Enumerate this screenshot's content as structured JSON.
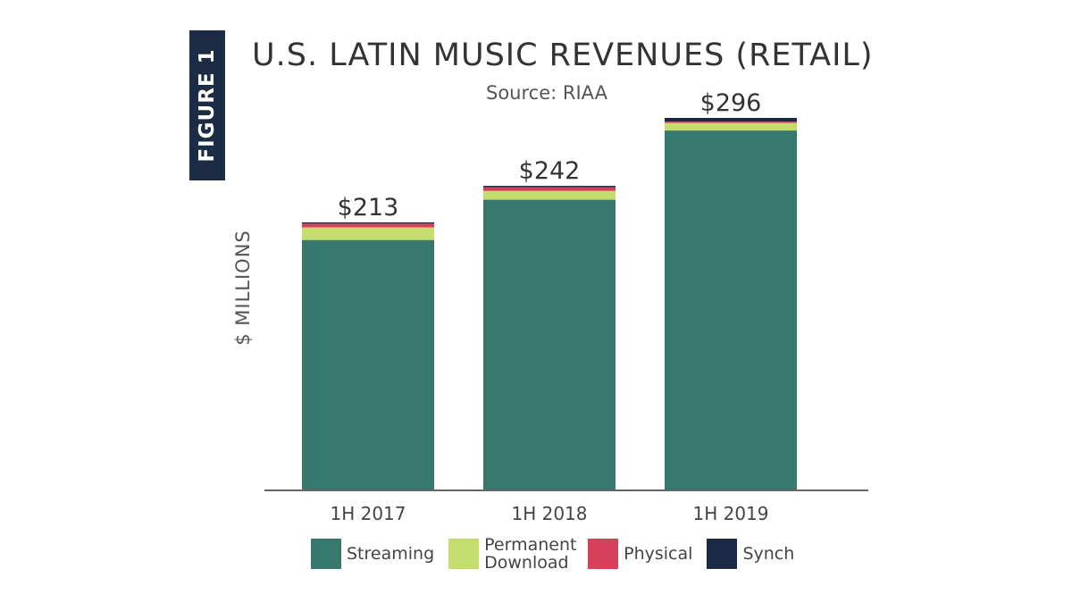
{
  "figure_tab": "FIGURE 1",
  "chart_data": {
    "type": "bar",
    "stacked": true,
    "title": "U.S. LATIN MUSIC REVENUES (RETAIL)",
    "subtitle": "Source: RIAA",
    "ylabel": "$ MILLIONS",
    "xlabel": "",
    "categories": [
      "1H 2017",
      "1H 2018",
      "1H 2019"
    ],
    "totals_labels": [
      "$213",
      "$242",
      "$296"
    ],
    "totals": [
      213,
      242,
      296
    ],
    "ylim": [
      0,
      300
    ],
    "grid": false,
    "legend_position": "bottom",
    "series": [
      {
        "name": "Streaming",
        "color": "#37786f",
        "values": [
          199,
          231,
          286
        ]
      },
      {
        "name": "Permanent Download",
        "color": "#c5dc6e",
        "values": [
          10,
          7,
          6
        ]
      },
      {
        "name": "Physical",
        "color": "#d6405a",
        "values": [
          3,
          3,
          1
        ]
      },
      {
        "name": "Synch",
        "color": "#1b2a45",
        "values": [
          1,
          1,
          3
        ]
      }
    ]
  }
}
